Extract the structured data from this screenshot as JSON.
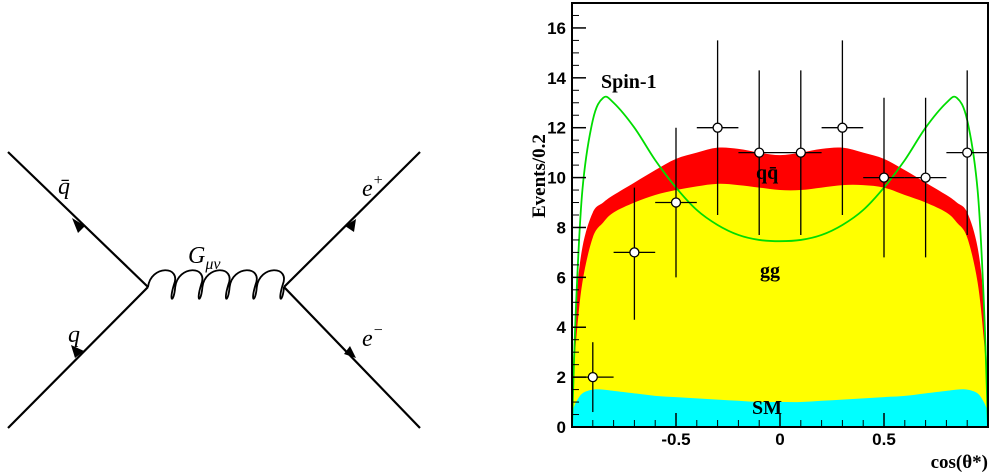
{
  "feynman": {
    "labels": {
      "qbar": "q̄",
      "q": "q",
      "graviton": "G",
      "graviton_sub": "μν",
      "eplus": "e",
      "eplus_sup": "+",
      "eminus": "e",
      "eminus_sup": "−"
    }
  },
  "chart_data": {
    "type": "area",
    "ylabel": "Events/0.2",
    "xlabel": "cos(θ*)",
    "xlim": [
      -1.0,
      1.0
    ],
    "ylim": [
      0,
      17
    ],
    "x_ticks": [
      -0.5,
      0,
      0.5
    ],
    "x_tick_labels": [
      "-0.5",
      "0",
      "0.5"
    ],
    "y_ticks": [
      0,
      2,
      4,
      6,
      8,
      10,
      12,
      14,
      16
    ],
    "y_tick_labels": [
      "0",
      "2",
      "4",
      "6",
      "8",
      "10",
      "12",
      "14",
      "16"
    ],
    "x": [
      -1.0,
      -0.98,
      -0.95,
      -0.9,
      -0.85,
      -0.8,
      -0.7,
      -0.6,
      -0.5,
      -0.4,
      -0.3,
      -0.2,
      -0.1,
      0.0,
      0.1,
      0.2,
      0.3,
      0.4,
      0.5,
      0.6,
      0.7,
      0.8,
      0.85,
      0.9,
      0.95,
      0.98,
      1.0
    ],
    "series": [
      {
        "name": "SM",
        "color": "#00ffff",
        "values": [
          0.6,
          1.0,
          1.35,
          1.5,
          1.5,
          1.45,
          1.35,
          1.25,
          1.2,
          1.15,
          1.1,
          1.05,
          1.0,
          1.0,
          1.0,
          1.05,
          1.1,
          1.15,
          1.2,
          1.25,
          1.35,
          1.45,
          1.5,
          1.5,
          1.35,
          1.0,
          0.6
        ]
      },
      {
        "name": "gg",
        "color": "#ffff00",
        "values": [
          1.2,
          3.5,
          5.8,
          7.6,
          8.2,
          8.6,
          9.0,
          9.3,
          9.5,
          9.65,
          9.75,
          9.7,
          9.6,
          9.5,
          9.5,
          9.6,
          9.7,
          9.7,
          9.6,
          9.3,
          9.0,
          8.6,
          8.2,
          7.6,
          5.8,
          3.5,
          1.2
        ]
      },
      {
        "name": "qq̄",
        "color": "#ff0000",
        "values": [
          1.5,
          5.0,
          7.2,
          8.6,
          9.0,
          9.3,
          9.8,
          10.3,
          10.75,
          11.0,
          11.2,
          11.15,
          11.0,
          10.9,
          11.0,
          11.15,
          11.2,
          11.0,
          10.75,
          10.3,
          9.8,
          9.3,
          9.0,
          8.6,
          7.2,
          5.0,
          1.5
        ]
      },
      {
        "name": "Spin-1",
        "color": "#00dd00",
        "values": [
          0.0,
          5.0,
          9.5,
          12.3,
          13.2,
          13.0,
          12.0,
          10.7,
          9.6,
          8.7,
          8.1,
          7.7,
          7.5,
          7.45,
          7.5,
          7.7,
          8.1,
          8.7,
          9.6,
          10.7,
          12.0,
          13.0,
          13.2,
          12.3,
          9.5,
          5.0,
          0.0
        ]
      }
    ],
    "data_points": [
      {
        "x": -0.9,
        "y": 2,
        "xerr": 0.1,
        "ylo": 0.6,
        "yhi": 3.4
      },
      {
        "x": -0.7,
        "y": 7,
        "xerr": 0.1,
        "ylo": 4.3,
        "yhi": 9.6
      },
      {
        "x": -0.5,
        "y": 9,
        "xerr": 0.1,
        "ylo": 6.0,
        "yhi": 12.0
      },
      {
        "x": -0.3,
        "y": 12,
        "xerr": 0.1,
        "ylo": 8.5,
        "yhi": 15.5
      },
      {
        "x": -0.1,
        "y": 11,
        "xerr": 0.1,
        "ylo": 7.7,
        "yhi": 14.3
      },
      {
        "x": 0.1,
        "y": 11,
        "xerr": 0.1,
        "ylo": 7.7,
        "yhi": 14.3
      },
      {
        "x": 0.3,
        "y": 12,
        "xerr": 0.1,
        "ylo": 8.5,
        "yhi": 15.5
      },
      {
        "x": 0.5,
        "y": 10,
        "xerr": 0.1,
        "ylo": 6.8,
        "yhi": 13.2
      },
      {
        "x": 0.7,
        "y": 10,
        "xerr": 0.1,
        "ylo": 6.8,
        "yhi": 13.2
      },
      {
        "x": 0.9,
        "y": 11,
        "xerr": 0.1,
        "ylo": 7.7,
        "yhi": 14.3
      }
    ],
    "annotations": [
      "Spin-1",
      "qq̄",
      "gg",
      "SM"
    ]
  }
}
